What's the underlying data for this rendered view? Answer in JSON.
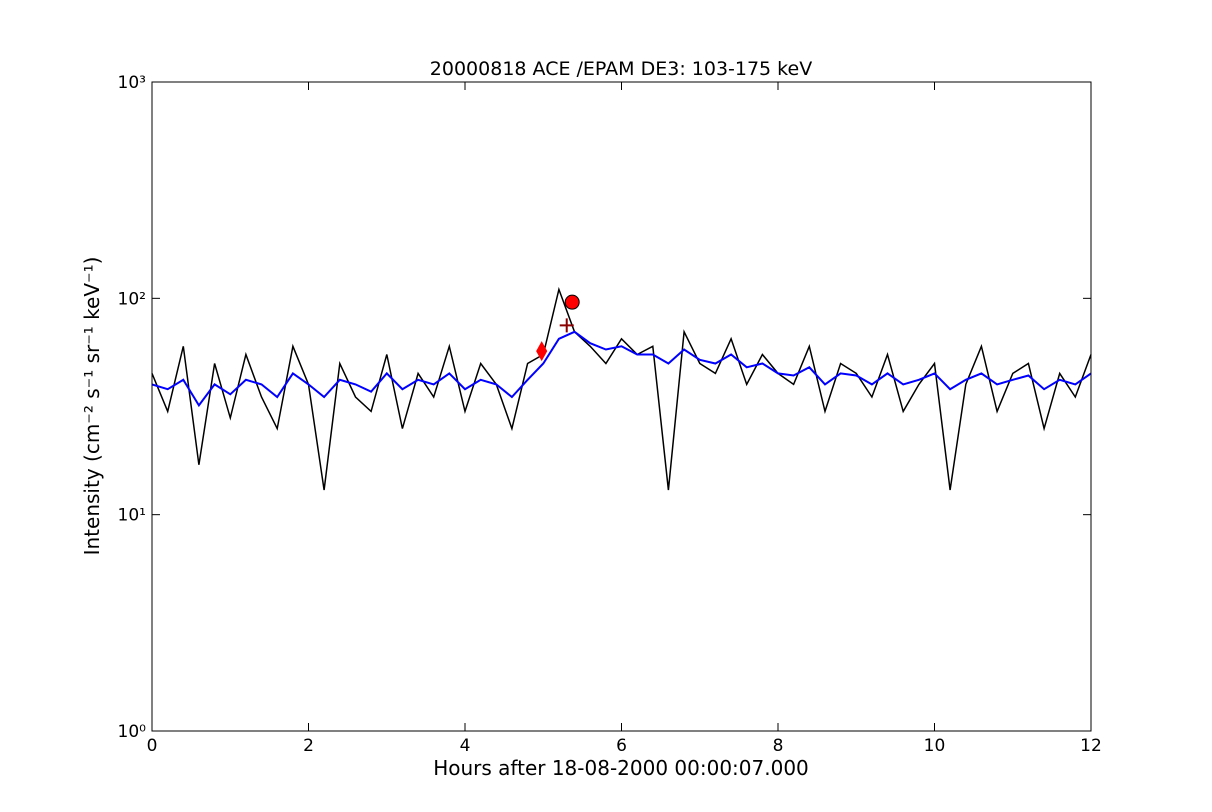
{
  "chart_data": {
    "type": "line",
    "title": "20000818 ACE /EPAM DE3: 103-175 keV",
    "xlabel": "Hours after 18-08-2000 00:00:07.000",
    "ylabel": "Intensity (cm⁻² s⁻¹ sr⁻¹ keV⁻¹)",
    "log_y": true,
    "xlim": [
      0,
      12
    ],
    "ylim": [
      1,
      1000
    ],
    "xticks": [
      0,
      2,
      4,
      6,
      8,
      10,
      12
    ],
    "yticks": [
      {
        "value": 1,
        "label": "10⁰"
      },
      {
        "value": 10,
        "label": "10¹"
      },
      {
        "value": 100,
        "label": "10²"
      },
      {
        "value": 1000,
        "label": "10³"
      }
    ],
    "x": [
      0,
      0.2,
      0.4,
      0.6,
      0.8,
      1.0,
      1.2,
      1.4,
      1.6,
      1.8,
      2.0,
      2.2,
      2.4,
      2.6,
      2.8,
      3.0,
      3.2,
      3.4,
      3.6,
      3.8,
      4.0,
      4.2,
      4.4,
      4.6,
      4.8,
      5.0,
      5.2,
      5.4,
      5.6,
      5.8,
      6.0,
      6.2,
      6.4,
      6.6,
      6.8,
      7.0,
      7.2,
      7.4,
      7.6,
      7.8,
      8.0,
      8.2,
      8.4,
      8.6,
      8.8,
      9.0,
      9.2,
      9.4,
      9.6,
      9.8,
      10.0,
      10.2,
      10.4,
      10.6,
      10.8,
      11.0,
      11.2,
      11.4,
      11.6,
      11.8,
      12.0
    ],
    "series": [
      {
        "color": "#000000",
        "width": 1.5,
        "values": [
          45,
          30,
          60,
          17,
          50,
          28,
          55,
          35,
          25,
          60,
          40,
          13,
          50,
          35,
          30,
          55,
          25,
          45,
          35,
          60,
          30,
          50,
          40,
          25,
          50,
          55,
          110,
          70,
          60,
          50,
          65,
          55,
          60,
          13,
          70,
          50,
          45,
          65,
          40,
          55,
          45,
          40,
          60,
          30,
          50,
          45,
          35,
          55,
          30,
          40,
          50,
          13,
          40,
          60,
          30,
          45,
          50,
          25,
          45,
          35,
          55
        ]
      },
      {
        "color": "#0000ff",
        "width": 2,
        "values": [
          40,
          38,
          42,
          32,
          40,
          36,
          42,
          40,
          35,
          45,
          40,
          35,
          42,
          40,
          37,
          45,
          38,
          42,
          40,
          45,
          38,
          42,
          40,
          35,
          42,
          50,
          65,
          70,
          62,
          58,
          60,
          55,
          55,
          50,
          58,
          52,
          50,
          55,
          48,
          50,
          45,
          44,
          48,
          40,
          45,
          44,
          40,
          45,
          40,
          42,
          45,
          38,
          42,
          45,
          40,
          42,
          44,
          38,
          42,
          40,
          45
        ]
      }
    ],
    "points": [
      {
        "x": 4.98,
        "y": 57,
        "marker": "diamond",
        "color": "#ff0000"
      },
      {
        "x": 5.3,
        "y": 75,
        "marker": "plus",
        "color": "#8b0000"
      },
      {
        "x": 5.37,
        "y": 96,
        "marker": "circle",
        "color": "#ff0000"
      }
    ]
  }
}
